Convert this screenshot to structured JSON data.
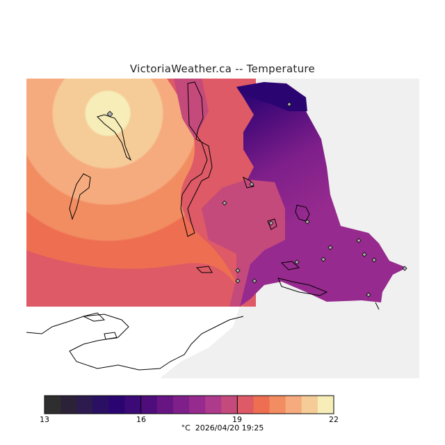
{
  "title": "VictoriaWeather.ca -- Temperature",
  "legend": {
    "ticks": [
      "13",
      "16",
      "19",
      "22"
    ],
    "min": 13,
    "max": 22,
    "colors": [
      "#2e2e2e",
      "#2c2238",
      "#2d1a4e",
      "#2a0f62",
      "#2a0572",
      "#3b0a76",
      "#4f0d7c",
      "#661583",
      "#7e1f8a",
      "#962a8e",
      "#ae3a8c",
      "#c44a7c",
      "#dd5a66",
      "#ee6e52",
      "#f28d62",
      "#f5ab7e",
      "#f5cc98",
      "#f6edb8"
    ]
  },
  "footer": {
    "unit": "°C",
    "datetime": "2026/04/20 19:25"
  },
  "map": {
    "land_color": "#f0f0f0",
    "stations_count_shown": 15
  }
}
